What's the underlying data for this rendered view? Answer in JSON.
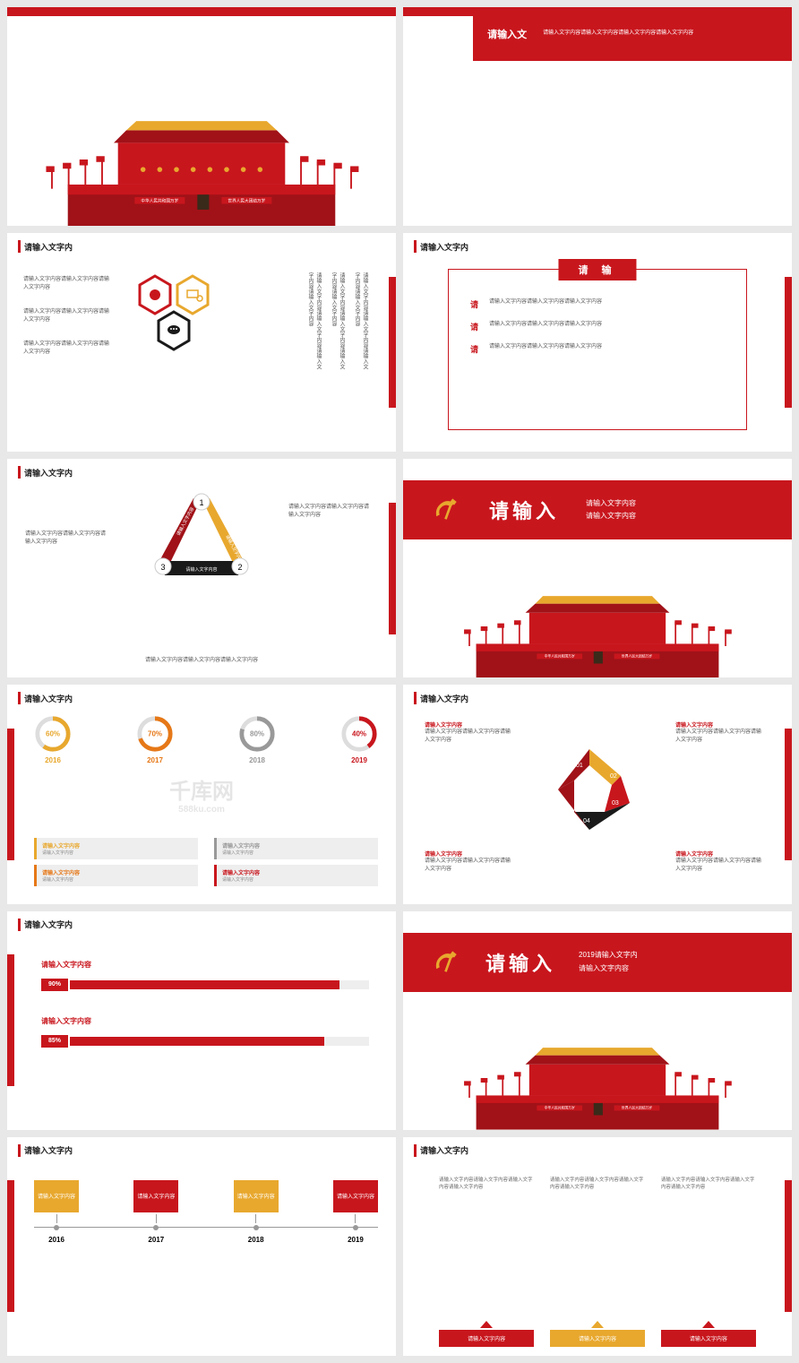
{
  "colors": {
    "red": "#c8161d",
    "darkred": "#a01218",
    "yellow": "#e8a82e",
    "orange": "#e67817",
    "black": "#1a1a1a",
    "grey": "#cccccc",
    "lightgrey": "#e5e5e5"
  },
  "placeholder": {
    "title": "请输入文字内",
    "text_short": "请输入文字内容",
    "text_long": "请输入文字内容请输入文字内容请输入文字内容请输入文字内容",
    "text_med": "请输入文字内容请输入文字内容请输入文字内容"
  },
  "slide1": {
    "box_left": "请输入文",
    "banner_left": "中华人民共和国万岁",
    "banner_right": "世界人民大团结万岁"
  },
  "slide3": {
    "hex_colors": [
      "#c8161d",
      "#e8a82e",
      "#1a1a1a"
    ]
  },
  "slide4": {
    "scroll": "请 输",
    "bullets": [
      "请",
      "请",
      "请"
    ]
  },
  "slide5": {
    "nums": [
      "1",
      "2",
      "3"
    ],
    "tri_colors": [
      "#a01218",
      "#e8a82e",
      "#1a1a1a"
    ]
  },
  "slide6": {
    "big": "请输入",
    "sub1": "请输入文字内容",
    "sub2": "请输入文字内容"
  },
  "slide7": {
    "rings": [
      {
        "pct": 60,
        "year": "2016",
        "color": "#e8a82e"
      },
      {
        "pct": 70,
        "year": "2017",
        "color": "#e67817"
      },
      {
        "pct": 80,
        "year": "2018",
        "color": "#999999"
      },
      {
        "pct": 40,
        "year": "2019",
        "color": "#c8161d"
      }
    ],
    "bars": [
      {
        "color": "#e8a82e"
      },
      {
        "color": "#999999"
      },
      {
        "color": "#e67817"
      },
      {
        "color": "#c8161d"
      }
    ]
  },
  "slide8": {
    "diamond": [
      {
        "n": "01",
        "c": "#a01218"
      },
      {
        "n": "02",
        "c": "#e8a82e"
      },
      {
        "n": "03",
        "c": "#c8161d"
      },
      {
        "n": "04",
        "c": "#1a1a1a"
      }
    ]
  },
  "slide9": {
    "bars": [
      {
        "v": 90,
        "label": "90%"
      },
      {
        "v": 85,
        "label": "85%"
      }
    ]
  },
  "slide10": {
    "big": "请输入",
    "year": "2019请输入文字内",
    "sub": "请输入文字内容"
  },
  "slide11": {
    "items": [
      {
        "year": "2016",
        "c": "#e8a82e"
      },
      {
        "year": "2017",
        "c": "#c8161d"
      },
      {
        "year": "2018",
        "c": "#e8a82e"
      },
      {
        "year": "2019",
        "c": "#c8161d"
      }
    ]
  },
  "slide12": {
    "boxes": [
      {
        "c": "#c8161d"
      },
      {
        "c": "#e8a82e"
      },
      {
        "c": "#c8161d"
      }
    ]
  },
  "watermark": {
    "text": "千库网",
    "url": "588ku.com"
  }
}
